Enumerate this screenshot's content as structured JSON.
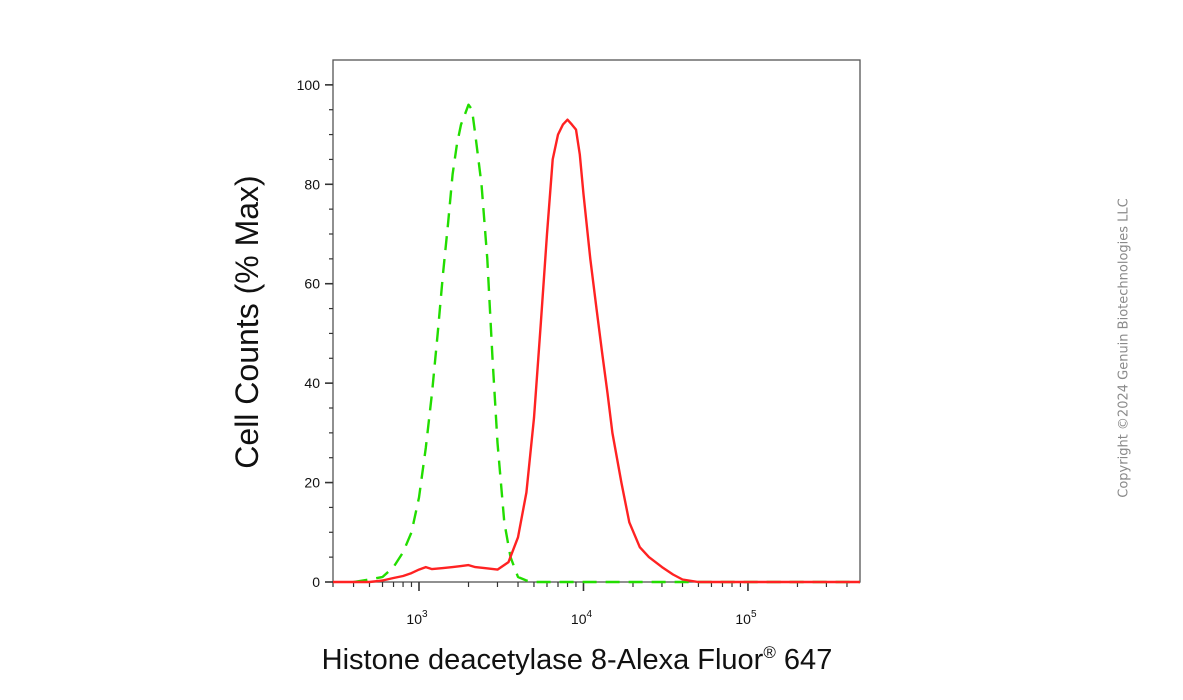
{
  "chart_data": {
    "type": "line",
    "xlabel": "Histone deacetylase 8-Alexa Fluor® 647",
    "ylabel": "Cell Counts (% Max)",
    "x_scale": "log",
    "xlim": [
      300,
      480000
    ],
    "ylim": [
      0,
      105
    ],
    "y_ticks": [
      "0",
      "20",
      "40",
      "60",
      "80",
      "100"
    ],
    "x_tick_labels": [
      {
        "base": "10",
        "exp": "3",
        "value": 1000
      },
      {
        "base": "10",
        "exp": "4",
        "value": 10000
      },
      {
        "base": "10",
        "exp": "5",
        "value": 100000
      }
    ],
    "grid": false,
    "legend": "none",
    "series": [
      {
        "style": "dashed",
        "color": "#22dd00",
        "x": [
          400,
          500,
          600,
          700,
          800,
          900,
          1000,
          1100,
          1200,
          1300,
          1400,
          1500,
          1600,
          1700,
          1800,
          1900,
          2000,
          2100,
          2200,
          2400,
          2600,
          2800,
          3000,
          3300,
          3600,
          4000,
          4500,
          5000,
          7000,
          10000,
          20000,
          50000,
          100000,
          480000
        ],
        "y": [
          0,
          0.5,
          1,
          3,
          6,
          10,
          17,
          27,
          38,
          50,
          62,
          72,
          82,
          88,
          92,
          94,
          96,
          95,
          90,
          80,
          65,
          45,
          28,
          12,
          5,
          1,
          0.3,
          0,
          0,
          0,
          0,
          0,
          0,
          0
        ]
      },
      {
        "style": "solid",
        "color": "#ff2222",
        "x": [
          300,
          500,
          600,
          700,
          800,
          900,
          1000,
          1100,
          1200,
          1400,
          1600,
          1800,
          2000,
          2200,
          2500,
          3000,
          3500,
          4000,
          4500,
          5000,
          5500,
          6000,
          6500,
          7000,
          7500,
          8000,
          8500,
          9000,
          9500,
          10000,
          11000,
          12000,
          13000,
          14000,
          15000,
          17000,
          19000,
          22000,
          25000,
          30000,
          35000,
          40000,
          50000,
          70000,
          100000,
          200000,
          480000
        ],
        "y": [
          0,
          0,
          0.3,
          0.8,
          1.2,
          1.8,
          2.5,
          3,
          2.6,
          2.8,
          3,
          3.2,
          3.4,
          3,
          2.8,
          2.5,
          4,
          9,
          18,
          33,
          52,
          70,
          85,
          90,
          92,
          93,
          92,
          91,
          86,
          78,
          65,
          55,
          46,
          38,
          30,
          20,
          12,
          7,
          5,
          3,
          1.5,
          0.5,
          0,
          0,
          0,
          0,
          0
        ]
      }
    ]
  },
  "copyright": "Copyright ©2024 Genuin Biotechnologies LLC"
}
